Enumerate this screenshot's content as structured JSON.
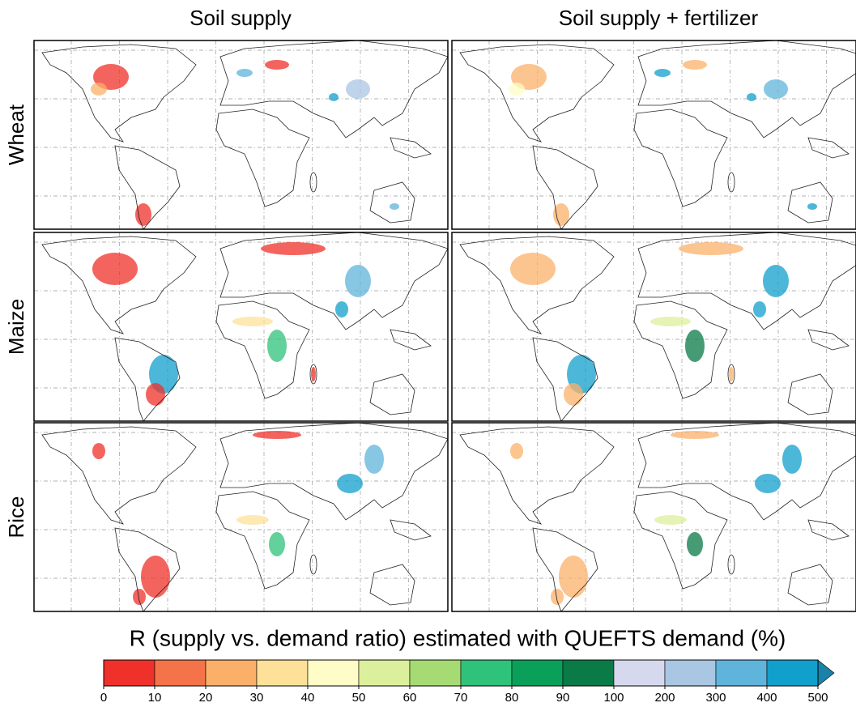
{
  "columns": [
    "Soil supply",
    "Soil supply + fertilizer"
  ],
  "rows": [
    "Wheat",
    "Maize",
    "Rice"
  ],
  "colorbar": {
    "title": "R (supply vs. demand ratio) estimated with QUEFTS demand (%)",
    "ticks": [
      0,
      10,
      20,
      30,
      40,
      50,
      60,
      70,
      80,
      90,
      100,
      200,
      300,
      400,
      500
    ],
    "colors": [
      "#f0302a",
      "#f57348",
      "#fbb069",
      "#fde199",
      "#fefdc7",
      "#dcef9c",
      "#a6db73",
      "#2ec27a",
      "#0aa05a",
      "#0a7a46",
      "#d6d9ee",
      "#a9c6e3",
      "#5fb4db",
      "#119fcc",
      "#1a82a8"
    ]
  }
}
